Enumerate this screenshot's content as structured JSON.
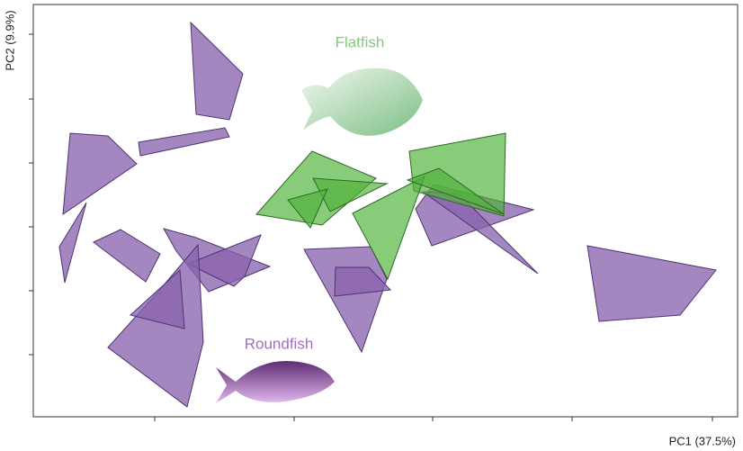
{
  "figure": {
    "x_label": "PC1 (37.5%)",
    "y_label": "PC2 (9.9%)",
    "annotations": [
      "Flatfish",
      "Roundfish"
    ]
  }
}
